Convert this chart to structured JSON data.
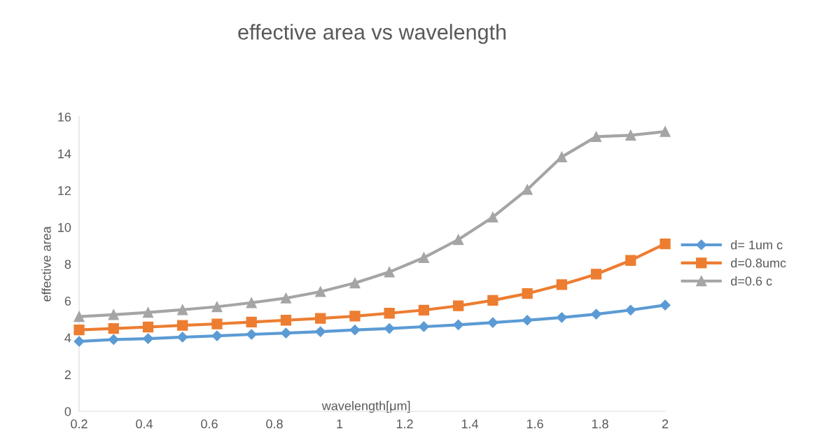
{
  "chart_data": {
    "type": "line",
    "title": "effective area vs wavelength",
    "xlabel": "wavelength[μm]",
    "ylabel": "effective area",
    "x": [
      0.2,
      0.3059,
      0.4118,
      0.5176,
      0.6235,
      0.7294,
      0.8353,
      0.9412,
      1.0471,
      1.1529,
      1.2588,
      1.3647,
      1.4706,
      1.5765,
      1.6824,
      1.7882,
      1.8941,
      2.0
    ],
    "series": [
      {
        "name": "d= 1um c",
        "color": "#5b9bd5",
        "marker": "diamond",
        "values": [
          3.8,
          3.9,
          3.95,
          4.03,
          4.1,
          4.18,
          4.25,
          4.33,
          4.42,
          4.5,
          4.6,
          4.7,
          4.82,
          4.95,
          5.1,
          5.28,
          5.5,
          5.77
        ]
      },
      {
        "name": "d=0.8umc",
        "color": "#ed7d31",
        "marker": "square",
        "values": [
          4.42,
          4.5,
          4.58,
          4.67,
          4.75,
          4.85,
          4.95,
          5.05,
          5.17,
          5.33,
          5.5,
          5.73,
          6.03,
          6.4,
          6.88,
          7.45,
          8.2,
          9.1
        ]
      },
      {
        "name": "d=0.6 c",
        "color": "#a5a5a5",
        "marker": "triangle",
        "values": [
          5.15,
          5.25,
          5.37,
          5.52,
          5.68,
          5.9,
          6.15,
          6.5,
          6.97,
          7.57,
          8.35,
          9.33,
          10.55,
          12.05,
          13.82,
          14.92,
          15.0,
          15.2
        ]
      }
    ],
    "xlim": [
      0.2,
      2
    ],
    "xticks": [
      0.2,
      0.4,
      0.6,
      0.8,
      1,
      1.2,
      1.4,
      1.6,
      1.8,
      2
    ],
    "ylim": [
      0,
      16
    ],
    "yticks": [
      0,
      2,
      4,
      6,
      8,
      10,
      12,
      14,
      16
    ],
    "grid": false,
    "legend": "right",
    "line_style": "solid"
  }
}
